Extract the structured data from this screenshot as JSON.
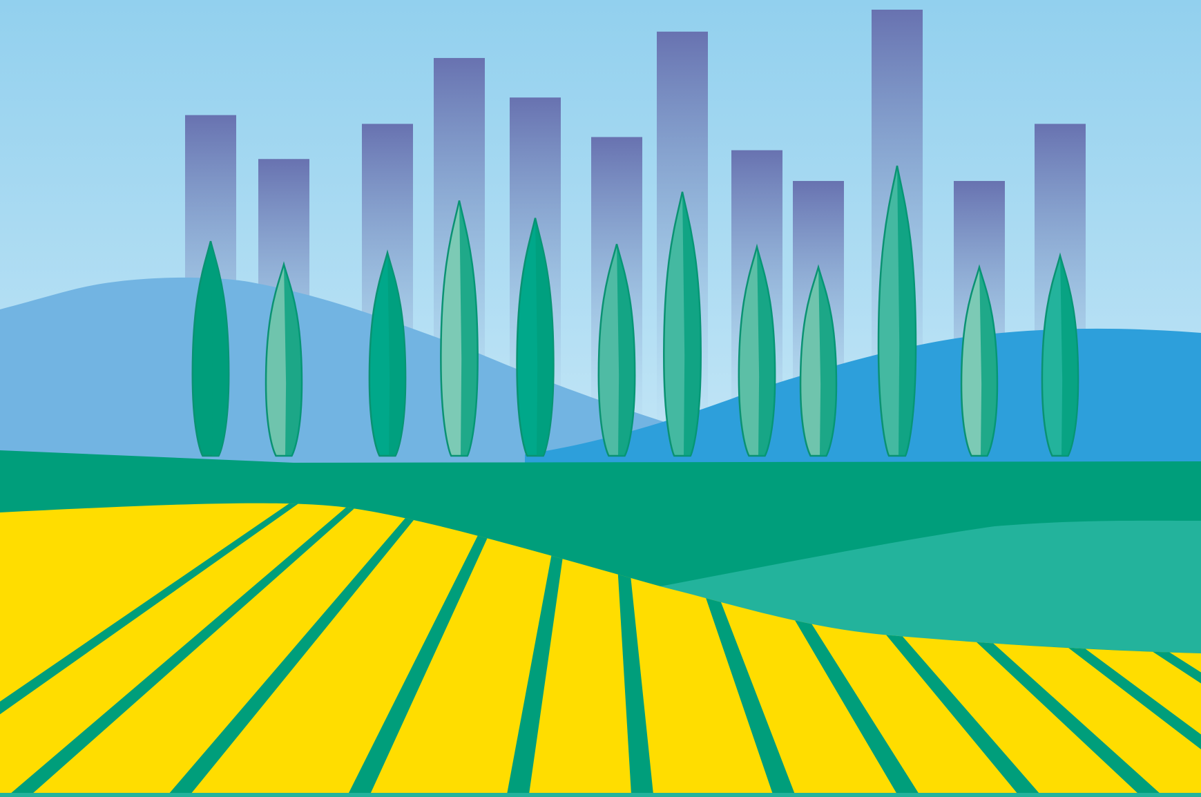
{
  "scene": {
    "colors": {
      "sky_top": "#92d0ee",
      "sky_bottom": "#e6f5fc",
      "hill_left": "#72b4e2",
      "hill_right": "#2d9fdb",
      "green_dark": "#009e7b",
      "green_light": "#23b39c",
      "field_yellow": "#ffdd00",
      "tower_top": "#6872b0",
      "tower_bottom": "#a9cfe9",
      "tree_outline": "#0a9272"
    },
    "towers": [
      {
        "height_rel": 0.76
      },
      {
        "height_rel": 0.66
      },
      {
        "height_rel": 0.74
      },
      {
        "height_rel": 0.89
      },
      {
        "height_rel": 0.8
      },
      {
        "height_rel": 0.71
      },
      {
        "height_rel": 0.95
      },
      {
        "height_rel": 0.68
      },
      {
        "height_rel": 0.61
      },
      {
        "height_rel": 1.0
      },
      {
        "height_rel": 0.61
      },
      {
        "height_rel": 0.74
      }
    ],
    "trees": [
      {
        "shade": "#009e7b",
        "height_rel": 0.74
      },
      {
        "shade": "#6fc4ad",
        "height_rel": 0.66
      },
      {
        "shade": "#00a88a",
        "height_rel": 0.7
      },
      {
        "shade": "#7ccab5",
        "height_rel": 0.88
      },
      {
        "shade": "#00a88a",
        "height_rel": 0.82
      },
      {
        "shade": "#4fbba4",
        "height_rel": 0.73
      },
      {
        "shade": "#44b9a1",
        "height_rel": 0.91
      },
      {
        "shade": "#5cbfa6",
        "height_rel": 0.72
      },
      {
        "shade": "#6fc4ad",
        "height_rel": 0.65
      },
      {
        "shade": "#44b9a1",
        "height_rel": 1.0
      },
      {
        "shade": "#7ccab5",
        "height_rel": 0.65
      },
      {
        "shade": "#23b39c",
        "height_rel": 0.69
      }
    ],
    "field_rows": 12
  }
}
